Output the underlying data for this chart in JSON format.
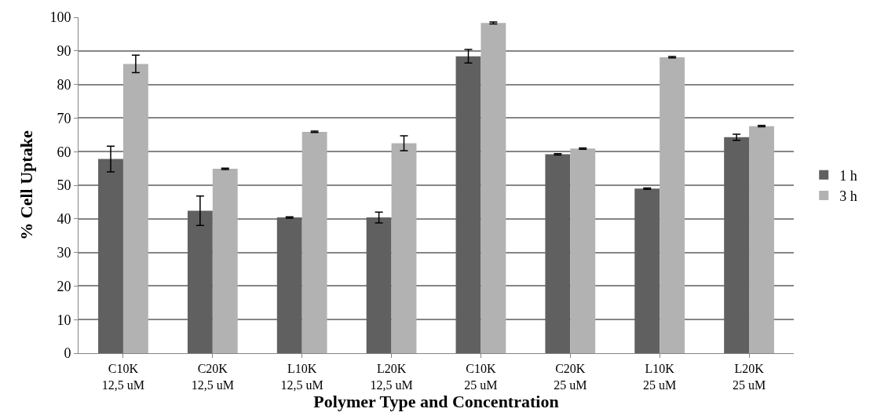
{
  "chart_data": {
    "type": "bar",
    "xlabel": "Polymer Type and Concentration",
    "ylabel": "% Cell Uptake",
    "categories": [
      "C10K\n12,5 uM",
      "C20K\n12,5 uM",
      "L10K\n12,5 uM",
      "L20K\n12,5 uM",
      "C10K\n25 uM",
      "C20K\n25 uM",
      "L10K\n25 uM",
      "L20K\n25 uM"
    ],
    "series": [
      {
        "name": "1 h",
        "color": "#606060",
        "values": [
          57.8,
          42.4,
          40.4,
          40.4,
          88.4,
          59.2,
          49.0,
          64.3
        ],
        "errors": [
          3.8,
          4.4,
          0.2,
          1.6,
          2.0,
          0.2,
          0.2,
          0.9
        ]
      },
      {
        "name": "3 h",
        "color": "#b2b2b2",
        "values": [
          86.1,
          54.9,
          65.9,
          62.5,
          98.3,
          60.9,
          88.1,
          67.6
        ],
        "errors": [
          2.6,
          0.2,
          0.2,
          2.2,
          0.3,
          0.2,
          0.2,
          0.2
        ]
      }
    ],
    "ylim": [
      0,
      100
    ],
    "yticks": [
      0,
      10,
      20,
      30,
      40,
      50,
      60,
      70,
      80,
      90,
      100
    ],
    "grid": "y",
    "legend": "right"
  }
}
